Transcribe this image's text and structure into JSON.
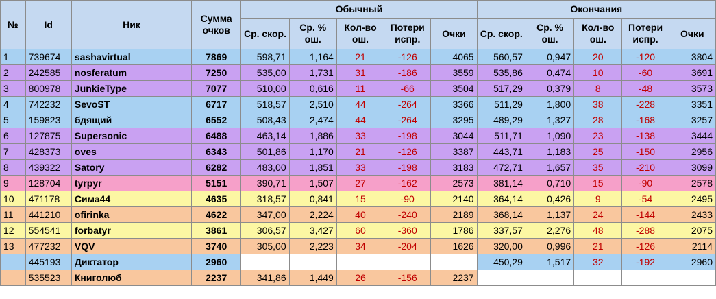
{
  "colors": {
    "header_bg": "#c5d9f1",
    "errors_text": "#c00000",
    "blue": "#a8d1f2",
    "violet": "#c9a1f2",
    "pink": "#f6a0c9",
    "yellow": "#fcf7a3",
    "orange": "#f9c79e"
  },
  "header": {
    "num": "№",
    "id": "Id",
    "nick": "Ник",
    "total": "Сумма очков",
    "group_normal": "Обычный",
    "group_endings": "Окончания",
    "sub": {
      "speed": "Ср. скор.",
      "err_pct": "Ср. % ош.",
      "err_count": "Кол-во ош.",
      "loss": "Потери испр.",
      "points": "Очки"
    }
  },
  "rows": [
    {
      "color": "blue",
      "num": "1",
      "id": "739674",
      "nick": "sashavirtual",
      "total": "7869",
      "normal": {
        "speed": "598,71",
        "err_pct": "1,164",
        "err_count": "21",
        "loss": "-126",
        "points": "4065"
      },
      "endings": {
        "speed": "560,57",
        "err_pct": "0,947",
        "err_count": "20",
        "loss": "-120",
        "points": "3804"
      }
    },
    {
      "color": "violet",
      "num": "2",
      "id": "242585",
      "nick": "nosferatum",
      "total": "7250",
      "normal": {
        "speed": "535,00",
        "err_pct": "1,731",
        "err_count": "31",
        "loss": "-186",
        "points": "3559"
      },
      "endings": {
        "speed": "535,86",
        "err_pct": "0,474",
        "err_count": "10",
        "loss": "-60",
        "points": "3691"
      }
    },
    {
      "color": "violet",
      "num": "3",
      "id": "800978",
      "nick": "JunkieType",
      "total": "7077",
      "normal": {
        "speed": "510,00",
        "err_pct": "0,616",
        "err_count": "11",
        "loss": "-66",
        "points": "3504"
      },
      "endings": {
        "speed": "517,29",
        "err_pct": "0,379",
        "err_count": "8",
        "loss": "-48",
        "points": "3573"
      }
    },
    {
      "color": "blue",
      "num": "4",
      "id": "742232",
      "nick": "SevoST",
      "total": "6717",
      "normal": {
        "speed": "518,57",
        "err_pct": "2,510",
        "err_count": "44",
        "loss": "-264",
        "points": "3366"
      },
      "endings": {
        "speed": "511,29",
        "err_pct": "1,800",
        "err_count": "38",
        "loss": "-228",
        "points": "3351"
      }
    },
    {
      "color": "blue",
      "num": "5",
      "id": "159823",
      "nick": "бдящий",
      "total": "6552",
      "normal": {
        "speed": "508,43",
        "err_pct": "2,474",
        "err_count": "44",
        "loss": "-264",
        "points": "3295"
      },
      "endings": {
        "speed": "489,29",
        "err_pct": "1,327",
        "err_count": "28",
        "loss": "-168",
        "points": "3257"
      }
    },
    {
      "color": "violet",
      "num": "6",
      "id": "127875",
      "nick": "Supersonic",
      "total": "6488",
      "normal": {
        "speed": "463,14",
        "err_pct": "1,886",
        "err_count": "33",
        "loss": "-198",
        "points": "3044"
      },
      "endings": {
        "speed": "511,71",
        "err_pct": "1,090",
        "err_count": "23",
        "loss": "-138",
        "points": "3444"
      }
    },
    {
      "color": "violet",
      "num": "7",
      "id": "428373",
      "nick": "oves",
      "total": "6343",
      "normal": {
        "speed": "501,86",
        "err_pct": "1,170",
        "err_count": "21",
        "loss": "-126",
        "points": "3387"
      },
      "endings": {
        "speed": "443,71",
        "err_pct": "1,183",
        "err_count": "25",
        "loss": "-150",
        "points": "2956"
      }
    },
    {
      "color": "violet",
      "num": "8",
      "id": "439322",
      "nick": "Satory",
      "total": "6282",
      "normal": {
        "speed": "483,00",
        "err_pct": "1,851",
        "err_count": "33",
        "loss": "-198",
        "points": "3183"
      },
      "endings": {
        "speed": "472,71",
        "err_pct": "1,657",
        "err_count": "35",
        "loss": "-210",
        "points": "3099"
      }
    },
    {
      "color": "pink",
      "num": "9",
      "id": "128704",
      "nick": "tyrpyr",
      "total": "5151",
      "normal": {
        "speed": "390,71",
        "err_pct": "1,507",
        "err_count": "27",
        "loss": "-162",
        "points": "2573"
      },
      "endings": {
        "speed": "381,14",
        "err_pct": "0,710",
        "err_count": "15",
        "loss": "-90",
        "points": "2578"
      }
    },
    {
      "color": "yellow",
      "num": "10",
      "id": "471178",
      "nick": "Сима44",
      "total": "4635",
      "normal": {
        "speed": "318,57",
        "err_pct": "0,841",
        "err_count": "15",
        "loss": "-90",
        "points": "2140"
      },
      "endings": {
        "speed": "364,14",
        "err_pct": "0,426",
        "err_count": "9",
        "loss": "-54",
        "points": "2495"
      }
    },
    {
      "color": "orange",
      "num": "11",
      "id": "441210",
      "nick": "ofirinka",
      "total": "4622",
      "normal": {
        "speed": "347,00",
        "err_pct": "2,224",
        "err_count": "40",
        "loss": "-240",
        "points": "2189"
      },
      "endings": {
        "speed": "368,14",
        "err_pct": "1,137",
        "err_count": "24",
        "loss": "-144",
        "points": "2433"
      }
    },
    {
      "color": "yellow",
      "num": "12",
      "id": "554541",
      "nick": "forbatyr",
      "total": "3861",
      "normal": {
        "speed": "306,57",
        "err_pct": "3,427",
        "err_count": "60",
        "loss": "-360",
        "points": "1786"
      },
      "endings": {
        "speed": "337,57",
        "err_pct": "2,276",
        "err_count": "48",
        "loss": "-288",
        "points": "2075"
      }
    },
    {
      "color": "orange",
      "num": "13",
      "id": "477232",
      "nick": "VQV",
      "total": "3740",
      "normal": {
        "speed": "305,00",
        "err_pct": "2,223",
        "err_count": "34",
        "loss": "-204",
        "points": "1626"
      },
      "endings": {
        "speed": "320,00",
        "err_pct": "0,996",
        "err_count": "21",
        "loss": "-126",
        "points": "2114"
      }
    },
    {
      "color": "blue",
      "num": "",
      "id": "445193",
      "nick": "Диктатор",
      "total": "2960",
      "normal": null,
      "endings": {
        "speed": "450,29",
        "err_pct": "1,517",
        "err_count": "32",
        "loss": "-192",
        "points": "2960"
      }
    },
    {
      "color": "orange",
      "num": "",
      "id": "535523",
      "nick": "Книголюб",
      "total": "2237",
      "normal": {
        "speed": "341,86",
        "err_pct": "1,449",
        "err_count": "26",
        "loss": "-156",
        "points": "2237"
      },
      "endings": null
    }
  ]
}
